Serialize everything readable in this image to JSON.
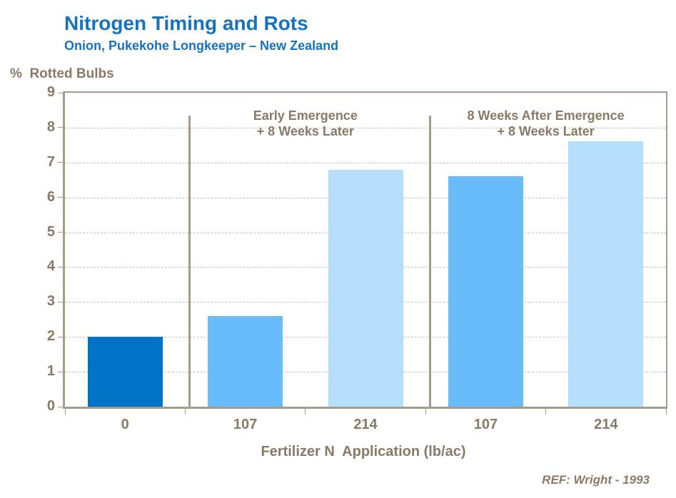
{
  "slide": {
    "title": "Nitrogen Timing and Rots",
    "subtitle": "Onion, Pukekohe Longkeeper – New Zealand",
    "ref_note": "REF: Wright - 1993"
  },
  "colors": {
    "title_blue": "#1573BE",
    "text_brown": "#8A7A65",
    "axis_line": "#A69A8B",
    "gridline": "#CBC0B3",
    "bar_dark_blue": "#0173C7",
    "bar_medium_blue": "#68BCFA",
    "bar_light_blue": "#B5DEFB"
  },
  "chart_data": {
    "type": "bar",
    "title": "Nitrogen Timing and Rots",
    "subtitle": "Onion, Pukekohe Longkeeper – New Zealand",
    "ylabel": "%  Rotted Bulbs",
    "xlabel": "Fertilizer N  Application (lb/ac)",
    "ylim": [
      0,
      9
    ],
    "ytick_interval": 1,
    "grid": "horizontal-dashed",
    "legend": "none",
    "categories": [
      "0",
      "107",
      "214",
      "107",
      "214"
    ],
    "values": [
      2.0,
      2.6,
      6.8,
      6.6,
      7.6
    ],
    "bar_colors": [
      "#0173C7",
      "#68BCFA",
      "#B5DEFB",
      "#68BCFA",
      "#B5DEFB"
    ],
    "group_annotations": [
      {
        "lines": [
          "Early Emergence",
          "+ 8 Weeks Later"
        ],
        "center_after_category": 2
      },
      {
        "lines": [
          "8 Weeks After Emergence",
          "+ 8 Weeks Later"
        ],
        "center_after_category": 4
      }
    ],
    "dividers_after_category": [
      1,
      3
    ],
    "ref_note": "REF: Wright - 1993"
  }
}
